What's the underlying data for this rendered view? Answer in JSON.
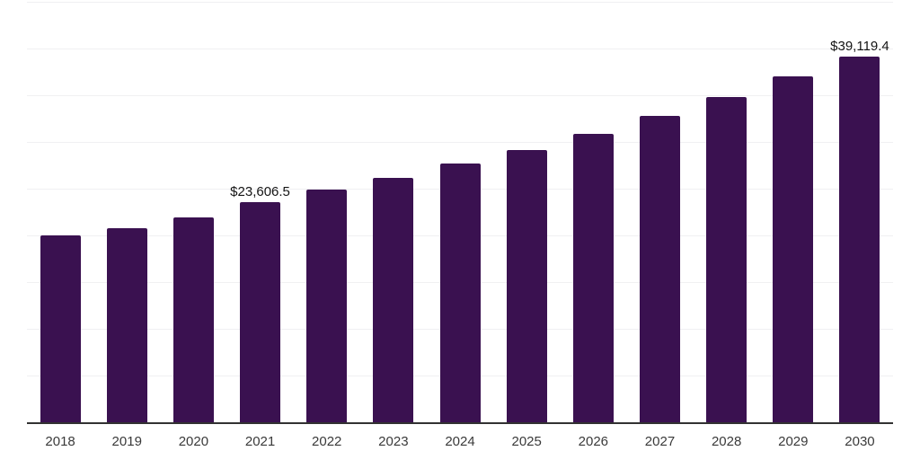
{
  "chart_data": {
    "type": "bar",
    "title": "",
    "xlabel": "",
    "ylabel": "",
    "categories": [
      "2018",
      "2019",
      "2020",
      "2021",
      "2022",
      "2023",
      "2024",
      "2025",
      "2026",
      "2027",
      "2028",
      "2029",
      "2030"
    ],
    "values": [
      20000,
      20770,
      21920,
      23606.5,
      24900,
      26150,
      27690,
      29130,
      30860,
      32790,
      34810,
      37020,
      39119.4
    ],
    "value_labels": {
      "2021": "$23,606.5",
      "2030": "$39,119.4"
    },
    "ylim": [
      0,
      45000
    ],
    "gridline_interval": 5000,
    "grid": "horizontal",
    "legend": "none",
    "colors": {
      "bar": "#3a1150",
      "axis_line": "#323232",
      "gridline": "#f0f0f2",
      "tick_label": "#3a3a3a",
      "value_label": "#141414",
      "background": "#ffffff"
    }
  }
}
